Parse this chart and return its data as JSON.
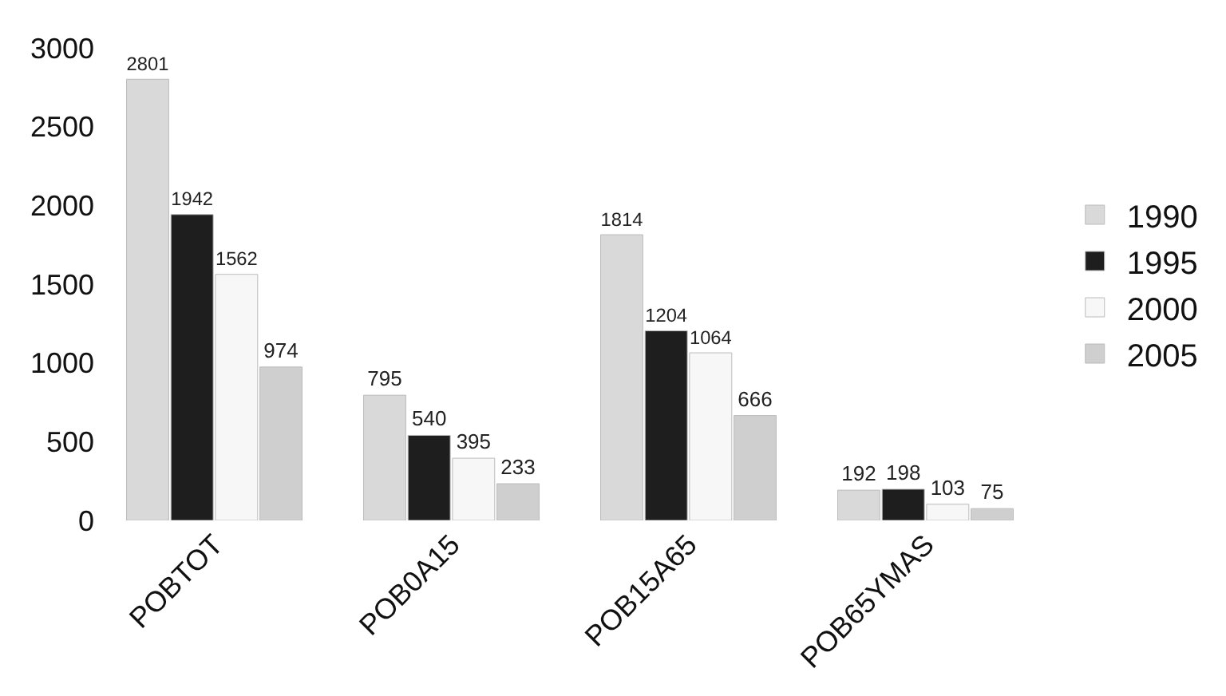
{
  "chart_data": {
    "type": "bar",
    "categories": [
      "POBTOT",
      "POB0A15",
      "POB15A65",
      "POB65YMAS"
    ],
    "series": [
      {
        "name": "1990",
        "color": "#d9d9d9",
        "values": [
          2801,
          795,
          1814,
          192
        ]
      },
      {
        "name": "1995",
        "color": "#1e1e1e",
        "values": [
          1942,
          540,
          1204,
          198
        ]
      },
      {
        "name": "2000",
        "color": "#f7f7f7",
        "values": [
          1562,
          395,
          1064,
          103
        ]
      },
      {
        "name": "2005",
        "color": "#cfcfcf",
        "values": [
          974,
          233,
          666,
          75
        ]
      }
    ],
    "ylim": [
      0,
      3000
    ],
    "yticks": [
      0,
      500,
      1000,
      1500,
      2000,
      2500,
      3000
    ],
    "legend": "right",
    "data_labels": true
  }
}
